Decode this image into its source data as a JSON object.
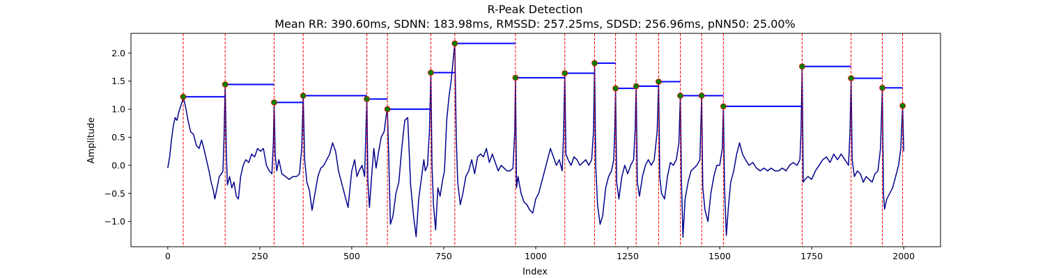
{
  "chart_data": {
    "type": "line",
    "title": "R-Peak Detection",
    "subtitle": "Mean RR: 390.60ms, SDNN: 183.98ms, RMSSD: 257.25ms, SDSD: 256.96ms, pNN50: 25.00%",
    "xlabel": "Index",
    "ylabel": "Amplitude",
    "xlim": [
      -100,
      2100
    ],
    "ylim": [
      -1.45,
      2.35
    ],
    "xticks": [
      0,
      250,
      500,
      750,
      1000,
      1250,
      1500,
      1750,
      2000
    ],
    "yticks": [
      -1.0,
      -0.5,
      0.0,
      0.5,
      1.0,
      1.5,
      2.0
    ],
    "grid": false,
    "signal_color": "#00008b",
    "peak_line_color": "#ff0000",
    "peak_marker_color": "#008000",
    "rr_segment_color": "#0000ff",
    "peaks": [
      {
        "x": 42,
        "y": 1.22
      },
      {
        "x": 156,
        "y": 1.44
      },
      {
        "x": 289,
        "y": 1.12
      },
      {
        "x": 368,
        "y": 1.24
      },
      {
        "x": 541,
        "y": 1.18
      },
      {
        "x": 597,
        "y": 1.0
      },
      {
        "x": 715,
        "y": 1.65
      },
      {
        "x": 780,
        "y": 2.17
      },
      {
        "x": 945,
        "y": 1.56
      },
      {
        "x": 1079,
        "y": 1.64
      },
      {
        "x": 1160,
        "y": 1.82
      },
      {
        "x": 1217,
        "y": 1.37
      },
      {
        "x": 1273,
        "y": 1.41
      },
      {
        "x": 1334,
        "y": 1.49
      },
      {
        "x": 1393,
        "y": 1.24
      },
      {
        "x": 1451,
        "y": 1.24
      },
      {
        "x": 1510,
        "y": 1.05
      },
      {
        "x": 1724,
        "y": 1.76
      },
      {
        "x": 1857,
        "y": 1.55
      },
      {
        "x": 1942,
        "y": 1.38
      },
      {
        "x": 1997,
        "y": 1.06
      }
    ],
    "signal": [
      [
        0,
        -0.05
      ],
      [
        5,
        0.15
      ],
      [
        10,
        0.45
      ],
      [
        15,
        0.7
      ],
      [
        20,
        0.85
      ],
      [
        25,
        0.8
      ],
      [
        30,
        0.95
      ],
      [
        35,
        1.05
      ],
      [
        40,
        1.15
      ],
      [
        42,
        1.22
      ],
      [
        48,
        1.05
      ],
      [
        55,
        0.8
      ],
      [
        62,
        0.6
      ],
      [
        70,
        0.55
      ],
      [
        78,
        0.35
      ],
      [
        85,
        0.3
      ],
      [
        92,
        0.45
      ],
      [
        98,
        0.3
      ],
      [
        105,
        0.1
      ],
      [
        112,
        -0.1
      ],
      [
        118,
        -0.3
      ],
      [
        124,
        -0.45
      ],
      [
        128,
        -0.6
      ],
      [
        134,
        -0.4
      ],
      [
        140,
        -0.2
      ],
      [
        146,
        -0.15
      ],
      [
        150,
        -0.1
      ],
      [
        153,
        0.5
      ],
      [
        156,
        1.44
      ],
      [
        159,
        0.3
      ],
      [
        162,
        -0.35
      ],
      [
        168,
        -0.2
      ],
      [
        174,
        -0.4
      ],
      [
        180,
        -0.3
      ],
      [
        186,
        -0.55
      ],
      [
        192,
        -0.6
      ],
      [
        198,
        -0.2
      ],
      [
        205,
        0.0
      ],
      [
        212,
        0.1
      ],
      [
        220,
        0.05
      ],
      [
        228,
        0.2
      ],
      [
        236,
        0.15
      ],
      [
        244,
        0.3
      ],
      [
        252,
        0.25
      ],
      [
        260,
        0.3
      ],
      [
        268,
        0.0
      ],
      [
        276,
        -0.1
      ],
      [
        283,
        -0.15
      ],
      [
        287,
        0.4
      ],
      [
        289,
        1.12
      ],
      [
        292,
        0.2
      ],
      [
        296,
        -0.1
      ],
      [
        302,
        0.1
      ],
      [
        310,
        -0.15
      ],
      [
        320,
        -0.2
      ],
      [
        330,
        -0.25
      ],
      [
        340,
        -0.2
      ],
      [
        350,
        -0.2
      ],
      [
        358,
        -0.15
      ],
      [
        364,
        0.3
      ],
      [
        368,
        1.24
      ],
      [
        372,
        0.1
      ],
      [
        378,
        -0.3
      ],
      [
        385,
        -0.45
      ],
      [
        392,
        -0.8
      ],
      [
        400,
        -0.5
      ],
      [
        408,
        -0.2
      ],
      [
        416,
        -0.05
      ],
      [
        424,
        0.0
      ],
      [
        432,
        0.1
      ],
      [
        440,
        0.2
      ],
      [
        448,
        0.4
      ],
      [
        456,
        0.25
      ],
      [
        464,
        -0.1
      ],
      [
        472,
        -0.3
      ],
      [
        480,
        -0.5
      ],
      [
        490,
        -0.75
      ],
      [
        500,
        -0.1
      ],
      [
        508,
        0.1
      ],
      [
        514,
        -0.2
      ],
      [
        520,
        -0.1
      ],
      [
        528,
        0.0
      ],
      [
        535,
        -0.2
      ],
      [
        538,
        0.5
      ],
      [
        541,
        1.18
      ],
      [
        544,
        -0.3
      ],
      [
        548,
        -0.75
      ],
      [
        554,
        -0.2
      ],
      [
        560,
        0.3
      ],
      [
        566,
        -0.05
      ],
      [
        572,
        0.2
      ],
      [
        580,
        0.5
      ],
      [
        588,
        0.6
      ],
      [
        594,
        0.9
      ],
      [
        597,
        1.0
      ],
      [
        600,
        0.3
      ],
      [
        605,
        -1.05
      ],
      [
        612,
        -0.9
      ],
      [
        620,
        -0.5
      ],
      [
        628,
        -0.3
      ],
      [
        636,
        0.3
      ],
      [
        644,
        0.8
      ],
      [
        652,
        0.85
      ],
      [
        660,
        -0.35
      ],
      [
        668,
        -0.9
      ],
      [
        675,
        -1.27
      ],
      [
        682,
        -0.6
      ],
      [
        690,
        -0.2
      ],
      [
        696,
        0.1
      ],
      [
        700,
        -0.1
      ],
      [
        706,
        0.0
      ],
      [
        711,
        0.6
      ],
      [
        715,
        1.65
      ],
      [
        718,
        0.0
      ],
      [
        722,
        -0.7
      ],
      [
        728,
        -1.15
      ],
      [
        734,
        -0.4
      ],
      [
        740,
        -0.55
      ],
      [
        746,
        -0.3
      ],
      [
        752,
        -0.1
      ],
      [
        758,
        0.8
      ],
      [
        764,
        1.2
      ],
      [
        770,
        1.5
      ],
      [
        776,
        1.9
      ],
      [
        780,
        2.17
      ],
      [
        784,
        0.5
      ],
      [
        788,
        -0.3
      ],
      [
        795,
        -0.7
      ],
      [
        802,
        -0.5
      ],
      [
        810,
        -0.2
      ],
      [
        818,
        -0.1
      ],
      [
        826,
        0.1
      ],
      [
        834,
        -0.15
      ],
      [
        842,
        0.15
      ],
      [
        850,
        0.2
      ],
      [
        858,
        0.15
      ],
      [
        866,
        0.3
      ],
      [
        874,
        0.05
      ],
      [
        882,
        0.2
      ],
      [
        890,
        0.05
      ],
      [
        898,
        -0.1
      ],
      [
        906,
        0.0
      ],
      [
        914,
        -0.05
      ],
      [
        922,
        -0.1
      ],
      [
        930,
        -0.1
      ],
      [
        938,
        -0.05
      ],
      [
        943,
        0.6
      ],
      [
        945,
        1.56
      ],
      [
        948,
        -0.4
      ],
      [
        952,
        -0.2
      ],
      [
        960,
        -0.5
      ],
      [
        968,
        -0.65
      ],
      [
        976,
        -0.7
      ],
      [
        984,
        -0.8
      ],
      [
        992,
        -0.85
      ],
      [
        1000,
        -0.6
      ],
      [
        1008,
        -0.5
      ],
      [
        1016,
        -0.3
      ],
      [
        1024,
        -0.1
      ],
      [
        1032,
        0.1
      ],
      [
        1040,
        0.3
      ],
      [
        1048,
        0.15
      ],
      [
        1056,
        0.0
      ],
      [
        1064,
        0.1
      ],
      [
        1072,
        -0.1
      ],
      [
        1076,
        0.6
      ],
      [
        1079,
        1.64
      ],
      [
        1082,
        0.2
      ],
      [
        1088,
        0.1
      ],
      [
        1096,
        0.0
      ],
      [
        1104,
        0.15
      ],
      [
        1112,
        0.1
      ],
      [
        1120,
        0.0
      ],
      [
        1128,
        0.05
      ],
      [
        1136,
        0.1
      ],
      [
        1144,
        0.0
      ],
      [
        1152,
        0.1
      ],
      [
        1157,
        0.6
      ],
      [
        1160,
        1.82
      ],
      [
        1163,
        0.0
      ],
      [
        1168,
        -0.7
      ],
      [
        1175,
        -1.05
      ],
      [
        1182,
        -0.9
      ],
      [
        1190,
        -0.4
      ],
      [
        1198,
        -0.2
      ],
      [
        1206,
        -0.1
      ],
      [
        1212,
        0.1
      ],
      [
        1215,
        0.7
      ],
      [
        1217,
        1.37
      ],
      [
        1220,
        -0.3
      ],
      [
        1226,
        -0.6
      ],
      [
        1234,
        -0.2
      ],
      [
        1242,
        0.0
      ],
      [
        1250,
        -0.15
      ],
      [
        1258,
        0.0
      ],
      [
        1266,
        0.1
      ],
      [
        1270,
        0.6
      ],
      [
        1273,
        1.41
      ],
      [
        1276,
        -0.3
      ],
      [
        1282,
        -0.55
      ],
      [
        1290,
        -0.2
      ],
      [
        1298,
        0.0
      ],
      [
        1306,
        0.1
      ],
      [
        1314,
        0.0
      ],
      [
        1322,
        0.1
      ],
      [
        1330,
        0.6
      ],
      [
        1334,
        1.49
      ],
      [
        1337,
        -0.2
      ],
      [
        1342,
        -0.5
      ],
      [
        1350,
        -0.6
      ],
      [
        1358,
        -0.2
      ],
      [
        1366,
        0.05
      ],
      [
        1374,
        0.0
      ],
      [
        1382,
        0.1
      ],
      [
        1389,
        0.4
      ],
      [
        1393,
        1.24
      ],
      [
        1396,
        -0.3
      ],
      [
        1400,
        -1.28
      ],
      [
        1406,
        -0.6
      ],
      [
        1414,
        -0.3
      ],
      [
        1422,
        -0.1
      ],
      [
        1430,
        -0.05
      ],
      [
        1438,
        0.0
      ],
      [
        1446,
        0.1
      ],
      [
        1451,
        1.24
      ],
      [
        1454,
        -0.4
      ],
      [
        1460,
        -0.8
      ],
      [
        1468,
        -1.0
      ],
      [
        1476,
        -0.5
      ],
      [
        1484,
        -0.2
      ],
      [
        1492,
        0.0
      ],
      [
        1500,
        0.0
      ],
      [
        1507,
        0.3
      ],
      [
        1510,
        1.05
      ],
      [
        1513,
        -0.4
      ],
      [
        1518,
        -1.25
      ],
      [
        1524,
        -0.7
      ],
      [
        1530,
        -0.3
      ],
      [
        1538,
        -0.1
      ],
      [
        1546,
        0.2
      ],
      [
        1554,
        0.4
      ],
      [
        1562,
        0.2
      ],
      [
        1570,
        0.1
      ],
      [
        1580,
        0.0
      ],
      [
        1590,
        0.05
      ],
      [
        1600,
        -0.05
      ],
      [
        1610,
        -0.1
      ],
      [
        1620,
        -0.05
      ],
      [
        1630,
        -0.1
      ],
      [
        1640,
        -0.05
      ],
      [
        1650,
        -0.1
      ],
      [
        1660,
        -0.1
      ],
      [
        1670,
        -0.05
      ],
      [
        1680,
        -0.1
      ],
      [
        1690,
        0.0
      ],
      [
        1700,
        0.05
      ],
      [
        1710,
        0.0
      ],
      [
        1718,
        0.1
      ],
      [
        1721,
        0.6
      ],
      [
        1724,
        1.76
      ],
      [
        1727,
        -0.3
      ],
      [
        1732,
        -0.25
      ],
      [
        1740,
        -0.2
      ],
      [
        1750,
        -0.25
      ],
      [
        1760,
        -0.1
      ],
      [
        1770,
        0.0
      ],
      [
        1780,
        0.1
      ],
      [
        1790,
        0.15
      ],
      [
        1800,
        0.05
      ],
      [
        1810,
        0.2
      ],
      [
        1820,
        0.1
      ],
      [
        1830,
        0.2
      ],
      [
        1840,
        0.1
      ],
      [
        1850,
        0.0
      ],
      [
        1854,
        0.6
      ],
      [
        1857,
        1.55
      ],
      [
        1860,
        0.1
      ],
      [
        1866,
        -0.2
      ],
      [
        1874,
        -0.1
      ],
      [
        1882,
        -0.15
      ],
      [
        1890,
        -0.3
      ],
      [
        1898,
        -0.2
      ],
      [
        1906,
        -0.25
      ],
      [
        1914,
        -0.3
      ],
      [
        1922,
        -0.15
      ],
      [
        1930,
        -0.1
      ],
      [
        1937,
        0.3
      ],
      [
        1942,
        1.38
      ],
      [
        1945,
        -0.5
      ],
      [
        1948,
        -0.78
      ],
      [
        1954,
        -0.6
      ],
      [
        1962,
        -0.5
      ],
      [
        1970,
        -0.4
      ],
      [
        1978,
        -0.2
      ],
      [
        1986,
        0.0
      ],
      [
        1992,
        0.3
      ],
      [
        1997,
        1.06
      ],
      [
        2000,
        0.25
      ]
    ]
  }
}
